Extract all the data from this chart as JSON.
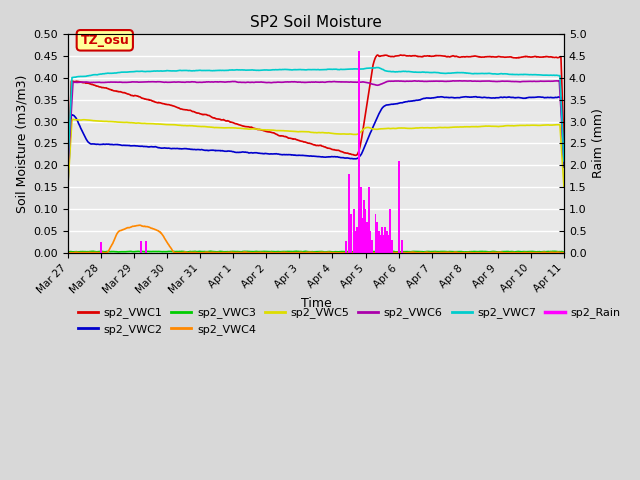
{
  "title": "SP2 Soil Moisture",
  "ylabel_left": "Soil Moisture (m3/m3)",
  "ylabel_right": "Raim (mm)",
  "xlabel": "Time",
  "ylim_left": [
    0.0,
    0.5
  ],
  "ylim_right": [
    0.0,
    5.0
  ],
  "yticks_left": [
    0.0,
    0.05,
    0.1,
    0.15,
    0.2,
    0.25,
    0.3,
    0.35,
    0.4,
    0.45,
    0.5
  ],
  "yticks_right": [
    0.0,
    0.5,
    1.0,
    1.5,
    2.0,
    2.5,
    3.0,
    3.5,
    4.0,
    4.5,
    5.0
  ],
  "plot_bg_color": "#e8e8e8",
  "annotation_text": "TZ_osu",
  "annotation_color": "#cc0000",
  "annotation_bg": "#ffff99",
  "series_colors": {
    "VWC1": "#dd0000",
    "VWC2": "#0000cc",
    "VWC3": "#00cc00",
    "VWC4": "#ff8800",
    "VWC5": "#dddd00",
    "VWC6": "#aa00aa",
    "VWC7": "#00cccc",
    "Rain": "#ff00ff"
  },
  "legend_entries": [
    {
      "label": "sp2_VWC1",
      "color": "#dd0000"
    },
    {
      "label": "sp2_VWC2",
      "color": "#0000cc"
    },
    {
      "label": "sp2_VWC3",
      "color": "#00cc00"
    },
    {
      "label": "sp2_VWC4",
      "color": "#ff8800"
    },
    {
      "label": "sp2_VWC5",
      "color": "#dddd00"
    },
    {
      "label": "sp2_VWC6",
      "color": "#aa00aa"
    },
    {
      "label": "sp2_VWC7",
      "color": "#00cccc"
    },
    {
      "label": "sp2_Rain",
      "color": "#ff00ff"
    }
  ]
}
